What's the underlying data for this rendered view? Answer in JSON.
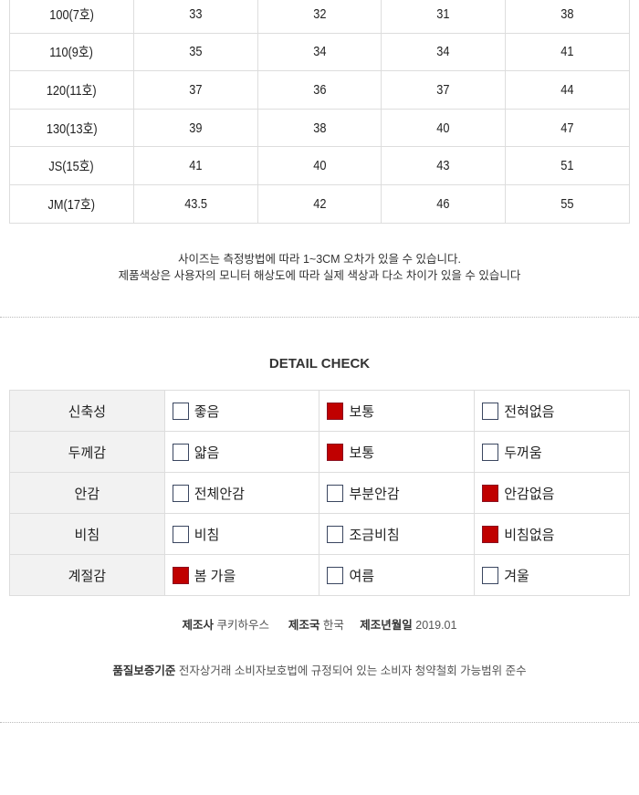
{
  "size_table": {
    "rows": [
      [
        "100(7호)",
        "33",
        "32",
        "31",
        "38"
      ],
      [
        "110(9호)",
        "35",
        "34",
        "34",
        "41"
      ],
      [
        "120(11호)",
        "37",
        "36",
        "37",
        "44"
      ],
      [
        "130(13호)",
        "39",
        "38",
        "40",
        "47"
      ],
      [
        "JS(15호)",
        "41",
        "40",
        "43",
        "51"
      ],
      [
        "JM(17호)",
        "43.5",
        "42",
        "46",
        "55"
      ]
    ]
  },
  "notes": [
    "사이즈는 측정방법에 따라 1~3CM 오차가 있을 수 있습니다.",
    "제품색상은 사용자의 모니터 해상도에 따라 실제 색상과 다소 차이가 있을 수 있습니다"
  ],
  "detail_check": {
    "title": "DETAIL CHECK",
    "checked_color": "#c00000",
    "rows": [
      {
        "label": "신축성",
        "options": [
          {
            "text": "좋음",
            "checked": false
          },
          {
            "text": "보통",
            "checked": true
          },
          {
            "text": "전혀없음",
            "checked": false
          }
        ]
      },
      {
        "label": "두께감",
        "options": [
          {
            "text": "얇음",
            "checked": false
          },
          {
            "text": "보통",
            "checked": true
          },
          {
            "text": "두꺼움",
            "checked": false
          }
        ]
      },
      {
        "label": "안감",
        "options": [
          {
            "text": "전체안감",
            "checked": false
          },
          {
            "text": "부분안감",
            "checked": false
          },
          {
            "text": "안감없음",
            "checked": true
          }
        ]
      },
      {
        "label": "비침",
        "options": [
          {
            "text": "비침",
            "checked": false
          },
          {
            "text": "조금비침",
            "checked": false
          },
          {
            "text": "비침없음",
            "checked": true
          }
        ]
      },
      {
        "label": "계절감",
        "options": [
          {
            "text": "봄 가을",
            "checked": true
          },
          {
            "text": "여름",
            "checked": false
          },
          {
            "text": "겨울",
            "checked": false
          }
        ]
      }
    ]
  },
  "info": {
    "maker_label": "제조사",
    "maker": "쿠키하우스",
    "country_label": "제조국",
    "country": "한국",
    "date_label": "제조년월일",
    "date": "2019.01",
    "quality_label": "품질보증기준",
    "quality": "전자상거래 소비자보호법에 규정되어 있는 소비자 청약철회 가능범위 준수"
  }
}
